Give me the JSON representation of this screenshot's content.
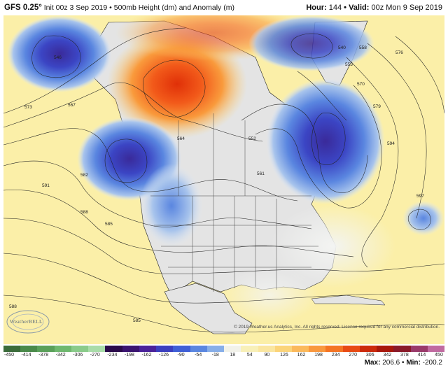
{
  "header": {
    "model": "GFS 0.25°",
    "init_label": "Init 00z 3 Sep 2019",
    "separator": "•",
    "product": "500mb Height (dm) and Anomaly (m)",
    "hour_label": "Hour:",
    "hour_value": "144",
    "valid_label": "Valid:",
    "valid_value": "00z Mon 9 Sep 2019"
  },
  "colorbar": {
    "ticks": [
      "-450",
      "-414",
      "-378",
      "-342",
      "-306",
      "-270",
      "-234",
      "-198",
      "-162",
      "-126",
      "-90",
      "-54",
      "-18",
      "18",
      "54",
      "90",
      "126",
      "162",
      "198",
      "234",
      "270",
      "306",
      "342",
      "378",
      "414",
      "450"
    ],
    "colors": [
      "#3a6b3a",
      "#4a8a4a",
      "#5aa05a",
      "#6fb86f",
      "#8acb8a",
      "#a9dca9",
      "#2a0a4a",
      "#3a1470",
      "#4a229a",
      "#3b3fbf",
      "#3f5fd6",
      "#5a86e0",
      "#87aee8",
      "#f2f2ea",
      "#f8f0b8",
      "#fae6a0",
      "#fbd47a",
      "#fbb95c",
      "#f9983e",
      "#f47424",
      "#e84a14",
      "#cc2a0c",
      "#a8170c",
      "#8a1a2a",
      "#9a3a6a",
      "#c06aa0"
    ]
  },
  "stats": {
    "max_label": "Max:",
    "max_value": "206.6",
    "min_label": "Min:",
    "min_value": "-200.2"
  },
  "copyright": "© 2019 Weather.us Analytics, Inc. All rights reserved. License required for any commercial distribution.",
  "logo": {
    "text": "WeatherBELL"
  },
  "contour_labels": [
    "546",
    "573",
    "567",
    "582",
    "585",
    "591",
    "588",
    "561",
    "564",
    "552",
    "579",
    "576",
    "570",
    "540",
    "555",
    "558",
    "597",
    "594",
    "588",
    "585"
  ],
  "colors": {
    "background": "#fbefa8",
    "land": "#e6e6e6",
    "blue_deep": "#3a2a9a",
    "blue_mid": "#4068d8",
    "blue_light": "#a8c4ec",
    "red_core": "#e83a10",
    "orange": "#f99a3c",
    "yellow": "#fcdc78"
  }
}
